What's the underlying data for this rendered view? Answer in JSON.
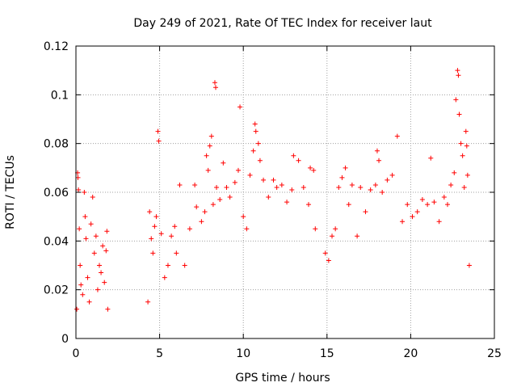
{
  "chart_data": {
    "type": "scatter",
    "title": "Day 249 of 2021, Rate Of TEC Index for receiver laut",
    "xlabel": "GPS time / hours",
    "ylabel": "ROTI / TECUs",
    "xlim": [
      0,
      25
    ],
    "ylim": [
      0,
      0.12
    ],
    "xticks": [
      0,
      5,
      10,
      15,
      20,
      25
    ],
    "xtick_labels": [
      "0",
      "5",
      "10",
      "15",
      "20",
      "25"
    ],
    "yticks": [
      0,
      0.02,
      0.04,
      0.06,
      0.08,
      0.1,
      0.12
    ],
    "ytick_labels": [
      "0",
      "0.02",
      "0.04",
      "0.06",
      "0.08",
      "0.1",
      "0.12"
    ],
    "grid": true,
    "marker": "+",
    "color": "#ff0000",
    "series": [
      {
        "values": [
          [
            0.05,
            0.012
          ],
          [
            0.1,
            0.068
          ],
          [
            0.12,
            0.066
          ],
          [
            0.15,
            0.061
          ],
          [
            0.2,
            0.045
          ],
          [
            0.25,
            0.03
          ],
          [
            0.3,
            0.022
          ],
          [
            0.4,
            0.018
          ],
          [
            0.5,
            0.06
          ],
          [
            0.55,
            0.05
          ],
          [
            0.6,
            0.041
          ],
          [
            0.7,
            0.025
          ],
          [
            0.8,
            0.015
          ],
          [
            0.9,
            0.047
          ],
          [
            1.0,
            0.058
          ],
          [
            1.1,
            0.035
          ],
          [
            1.2,
            0.042
          ],
          [
            1.3,
            0.02
          ],
          [
            1.4,
            0.03
          ],
          [
            1.5,
            0.027
          ],
          [
            1.6,
            0.038
          ],
          [
            1.7,
            0.023
          ],
          [
            1.8,
            0.036
          ],
          [
            1.85,
            0.044
          ],
          [
            1.9,
            0.012
          ],
          [
            4.3,
            0.015
          ],
          [
            4.4,
            0.052
          ],
          [
            4.5,
            0.041
          ],
          [
            4.6,
            0.035
          ],
          [
            4.7,
            0.046
          ],
          [
            4.8,
            0.05
          ],
          [
            4.9,
            0.085
          ],
          [
            4.95,
            0.081
          ],
          [
            5.1,
            0.043
          ],
          [
            5.3,
            0.025
          ],
          [
            5.5,
            0.03
          ],
          [
            5.7,
            0.042
          ],
          [
            5.9,
            0.046
          ],
          [
            6.0,
            0.035
          ],
          [
            6.2,
            0.063
          ],
          [
            6.5,
            0.03
          ],
          [
            6.8,
            0.045
          ],
          [
            7.1,
            0.063
          ],
          [
            7.2,
            0.054
          ],
          [
            7.5,
            0.048
          ],
          [
            7.7,
            0.052
          ],
          [
            7.8,
            0.075
          ],
          [
            7.9,
            0.069
          ],
          [
            8.0,
            0.079
          ],
          [
            8.1,
            0.083
          ],
          [
            8.2,
            0.055
          ],
          [
            8.3,
            0.105
          ],
          [
            8.35,
            0.103
          ],
          [
            8.4,
            0.062
          ],
          [
            8.6,
            0.057
          ],
          [
            8.8,
            0.072
          ],
          [
            9.0,
            0.062
          ],
          [
            9.2,
            0.058
          ],
          [
            9.5,
            0.064
          ],
          [
            9.7,
            0.069
          ],
          [
            9.8,
            0.095
          ],
          [
            10.0,
            0.05
          ],
          [
            10.2,
            0.045
          ],
          [
            10.4,
            0.067
          ],
          [
            10.6,
            0.077
          ],
          [
            10.7,
            0.088
          ],
          [
            10.75,
            0.085
          ],
          [
            10.9,
            0.08
          ],
          [
            11.0,
            0.073
          ],
          [
            11.2,
            0.065
          ],
          [
            11.5,
            0.058
          ],
          [
            11.8,
            0.065
          ],
          [
            12.0,
            0.062
          ],
          [
            12.3,
            0.063
          ],
          [
            12.6,
            0.056
          ],
          [
            12.9,
            0.061
          ],
          [
            13.0,
            0.075
          ],
          [
            13.3,
            0.073
          ],
          [
            13.6,
            0.062
          ],
          [
            13.9,
            0.055
          ],
          [
            14.0,
            0.07
          ],
          [
            14.2,
            0.069
          ],
          [
            14.3,
            0.045
          ],
          [
            14.9,
            0.035
          ],
          [
            15.1,
            0.032
          ],
          [
            15.3,
            0.042
          ],
          [
            15.5,
            0.045
          ],
          [
            15.7,
            0.062
          ],
          [
            15.9,
            0.066
          ],
          [
            16.1,
            0.07
          ],
          [
            16.3,
            0.055
          ],
          [
            16.5,
            0.063
          ],
          [
            16.8,
            0.042
          ],
          [
            17.0,
            0.062
          ],
          [
            17.3,
            0.052
          ],
          [
            17.6,
            0.061
          ],
          [
            17.9,
            0.063
          ],
          [
            18.0,
            0.077
          ],
          [
            18.1,
            0.073
          ],
          [
            18.3,
            0.06
          ],
          [
            18.6,
            0.065
          ],
          [
            18.9,
            0.067
          ],
          [
            19.2,
            0.083
          ],
          [
            19.5,
            0.048
          ],
          [
            19.8,
            0.055
          ],
          [
            20.1,
            0.05
          ],
          [
            20.4,
            0.052
          ],
          [
            20.7,
            0.057
          ],
          [
            21.0,
            0.055
          ],
          [
            21.2,
            0.074
          ],
          [
            21.4,
            0.056
          ],
          [
            21.7,
            0.048
          ],
          [
            22.0,
            0.058
          ],
          [
            22.2,
            0.055
          ],
          [
            22.4,
            0.063
          ],
          [
            22.6,
            0.068
          ],
          [
            22.7,
            0.098
          ],
          [
            22.8,
            0.11
          ],
          [
            22.85,
            0.108
          ],
          [
            22.9,
            0.092
          ],
          [
            23.0,
            0.08
          ],
          [
            23.1,
            0.075
          ],
          [
            23.2,
            0.062
          ],
          [
            23.3,
            0.085
          ],
          [
            23.35,
            0.079
          ],
          [
            23.4,
            0.067
          ],
          [
            23.5,
            0.03
          ]
        ]
      }
    ]
  }
}
